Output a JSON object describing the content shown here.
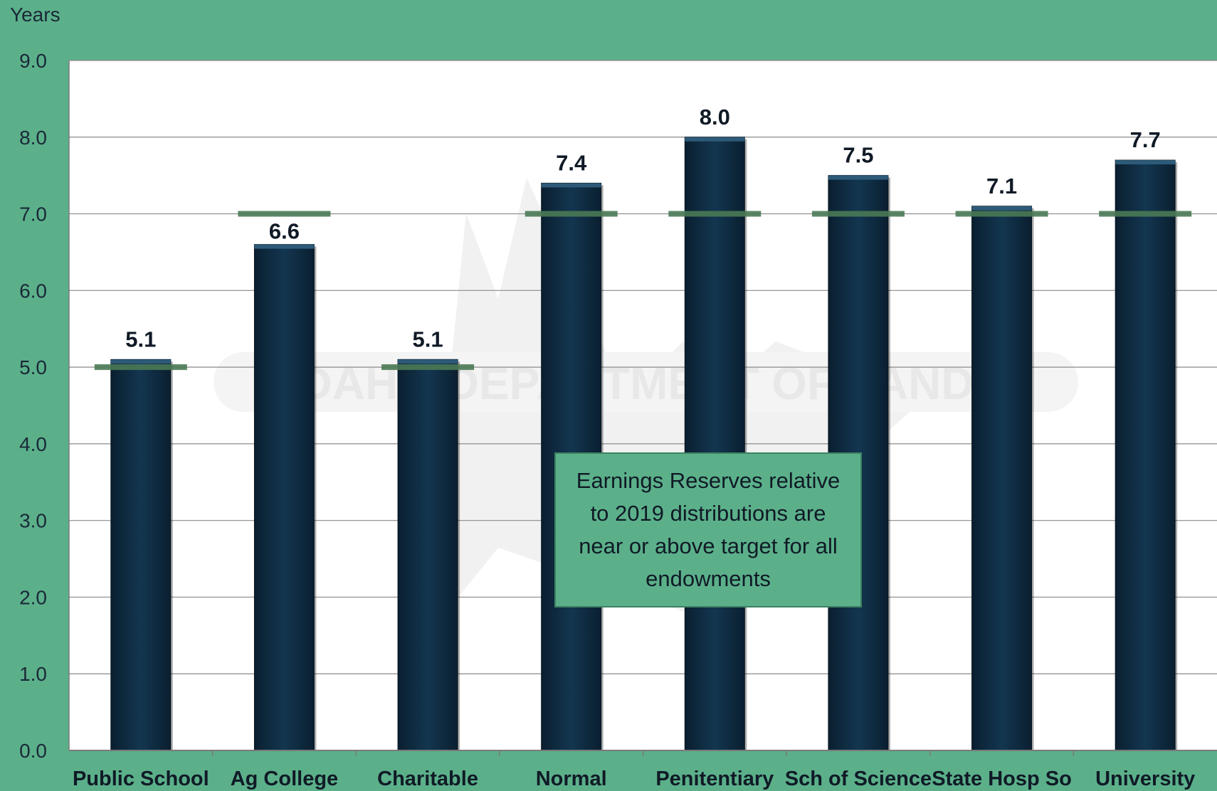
{
  "chart_data": {
    "type": "bar",
    "ylabel": "Years",
    "ylim": [
      0,
      9
    ],
    "yticks": [
      "0.0",
      "1.0",
      "2.0",
      "3.0",
      "4.0",
      "5.0",
      "6.0",
      "7.0",
      "8.0",
      "9.0"
    ],
    "categories": [
      "Public School",
      "Ag College",
      "Charitable",
      "Normal",
      "Penitentiary",
      "Sch of Science",
      "State Hosp So",
      "University"
    ],
    "values": [
      5.1,
      6.6,
      5.1,
      7.4,
      8.0,
      7.5,
      7.1,
      7.7
    ],
    "value_labels": [
      "5.1",
      "6.6",
      "5.1",
      "7.4",
      "8.0",
      "7.5",
      "7.1",
      "7.7"
    ],
    "targets": [
      5.0,
      7.0,
      5.0,
      7.0,
      7.0,
      7.0,
      7.0,
      7.0
    ],
    "grid": true,
    "annotation": "Earnings Reserves relative to 2019 distributions are near or above target for all endowments",
    "watermark": "IDAHO DEPARTMENT OF LANDS",
    "colors": {
      "background": "#5bb08a",
      "plot_area": "#ffffff",
      "bar": "#0e2a40",
      "target_line": "#4a7a55",
      "gridline": "#8a8a8a"
    }
  }
}
